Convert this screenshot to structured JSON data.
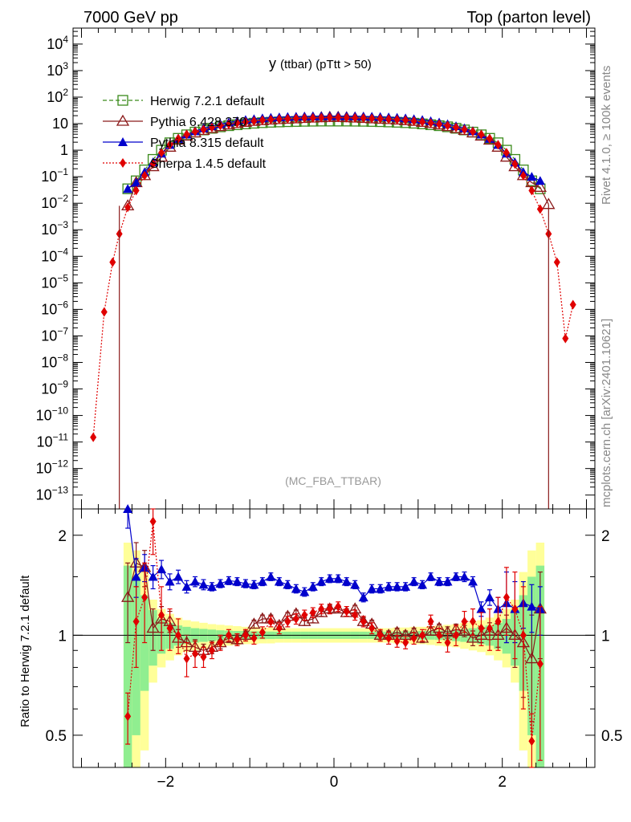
{
  "header": {
    "left": "7000 GeV pp",
    "right": "Top (parton level)"
  },
  "side_text": {
    "rivet": "Rivet 4.1.0, ≥ 100k events",
    "mcplots": "mcplots.cern.ch [arXiv:2401.10621]"
  },
  "watermark": "(MC_FBA_TTBAR)",
  "main_title": {
    "main": "y",
    "sub": "(ttbar)  (pTtt > 50)"
  },
  "ratio_ylabel": "Ratio to Herwig 7.2.1 default",
  "colors": {
    "herwig": "#3a8a1a",
    "pythia6": "#8b1a1a",
    "pythia8": "#0000cc",
    "sherpa": "#e00000",
    "band_inner": "#90ee90",
    "band_outer": "#ffff99"
  },
  "chart_data": [
    {
      "type": "line",
      "panel": "main",
      "y_scale": "log",
      "xlim": [
        -3.1,
        3.1
      ],
      "ylim": [
        3e-14,
        40000
      ],
      "y_ticklabels": [
        "10^-13",
        "10^-12",
        "10^-11",
        "10^-10",
        "10^-9",
        "10^-8",
        "10^-7",
        "10^-6",
        "10^-5",
        "10^-4",
        "10^-3",
        "10^-2",
        "10^-1",
        "1",
        "10",
        "10^2",
        "10^3",
        "10^4"
      ],
      "legend_position": "top-left",
      "x": [
        -2.86,
        -2.73,
        -2.63,
        -2.55,
        -2.45,
        -2.35,
        -2.25,
        -2.15,
        -2.05,
        -1.95,
        -1.85,
        -1.75,
        -1.65,
        -1.55,
        -1.45,
        -1.35,
        -1.25,
        -1.15,
        -1.05,
        -0.95,
        -0.85,
        -0.75,
        -0.65,
        -0.55,
        -0.45,
        -0.35,
        -0.25,
        -0.15,
        -0.05,
        0.05,
        0.15,
        0.25,
        0.35,
        0.45,
        0.55,
        0.65,
        0.75,
        0.85,
        0.95,
        1.05,
        1.15,
        1.25,
        1.35,
        1.45,
        1.55,
        1.65,
        1.75,
        1.85,
        1.95,
        2.05,
        2.15,
        2.25,
        2.35,
        2.45,
        2.55,
        2.65,
        2.75,
        2.84
      ],
      "series": [
        {
          "name": "Herwig 7.2.1 default",
          "marker": "open-square",
          "style": "dashed",
          "y": [
            null,
            null,
            null,
            null,
            0.035,
            0.07,
            0.18,
            0.45,
            1.0,
            1.9,
            2.8,
            3.8,
            4.8,
            5.8,
            6.7,
            7.6,
            8.4,
            9.1,
            9.8,
            10.4,
            10.9,
            11.3,
            11.6,
            11.9,
            12.1,
            12.3,
            12.4,
            12.5,
            12.5,
            12.5,
            12.5,
            12.4,
            12.3,
            12.1,
            11.9,
            11.6,
            11.3,
            10.9,
            10.4,
            9.8,
            9.1,
            8.4,
            7.6,
            6.7,
            5.8,
            4.8,
            3.8,
            2.8,
            1.9,
            1.0,
            0.45,
            0.18,
            0.07,
            0.035,
            null,
            null,
            null,
            null
          ]
        },
        {
          "name": "Pythia 6.428 370",
          "marker": "open-triangle",
          "style": "solid",
          "y": [
            null,
            null,
            null,
            null,
            0.008,
            0.06,
            0.11,
            0.24,
            0.55,
            1.3,
            2.4,
            3.4,
            4.5,
            5.6,
            6.6,
            7.8,
            9.0,
            10.1,
            11.3,
            12.3,
            13.1,
            13.8,
            14.3,
            14.8,
            15.3,
            15.8,
            16.3,
            16.8,
            17.3,
            17.3,
            16.8,
            16.3,
            15.8,
            15.3,
            14.8,
            14.3,
            13.8,
            13.1,
            12.3,
            11.3,
            10.1,
            9.0,
            7.8,
            6.6,
            5.6,
            4.5,
            3.4,
            2.4,
            1.3,
            0.55,
            0.24,
            0.11,
            0.06,
            0.04,
            0.009,
            null,
            null,
            null
          ]
        },
        {
          "name": "Pythia 8.315 default",
          "marker": "filled-triangle",
          "style": "solid",
          "y": [
            null,
            null,
            null,
            null,
            0.035,
            0.06,
            0.15,
            0.35,
            0.75,
            1.6,
            2.7,
            3.9,
            5.2,
            6.7,
            8.1,
            9.6,
            11.1,
            12.5,
            13.8,
            14.9,
            15.9,
            16.8,
            17.4,
            17.9,
            18.3,
            18.6,
            18.9,
            19.1,
            19.2,
            19.2,
            19.1,
            18.9,
            18.6,
            18.3,
            17.9,
            17.4,
            16.8,
            15.9,
            14.9,
            13.8,
            12.5,
            11.1,
            9.6,
            8.1,
            6.7,
            5.2,
            3.9,
            2.7,
            1.6,
            0.75,
            0.35,
            0.15,
            0.1,
            0.07,
            null,
            null,
            null,
            null
          ]
        },
        {
          "name": "Sherpa 1.4.5 default",
          "marker": "filled-diamond",
          "style": "dotted",
          "y": [
            1.5e-11,
            8e-07,
            6e-05,
            0.0007,
            0.007,
            0.03,
            0.11,
            0.3,
            0.8,
            1.6,
            2.7,
            3.9,
            5.0,
            6.0,
            7.2,
            8.4,
            9.5,
            10.6,
            11.6,
            12.6,
            13.5,
            14.2,
            14.9,
            15.4,
            15.8,
            16.2,
            16.5,
            16.8,
            17.0,
            17.0,
            16.8,
            16.5,
            16.2,
            15.8,
            15.4,
            14.9,
            14.2,
            13.5,
            12.6,
            11.6,
            10.6,
            9.5,
            8.4,
            7.2,
            6.0,
            5.0,
            3.9,
            2.7,
            1.6,
            0.8,
            0.3,
            0.11,
            0.03,
            0.006,
            0.0007,
            6e-05,
            8e-08,
            1.5e-06
          ]
        }
      ]
    },
    {
      "type": "line",
      "panel": "ratio",
      "xlabel": "",
      "ylabel": "Ratio to Herwig 7.2.1 default",
      "y_scale": "log",
      "ylim": [
        0.4,
        2.4
      ],
      "x_ticklabels": [
        "−2",
        "0",
        "2"
      ],
      "y_ticklabels": [
        "0.5",
        "1",
        "2"
      ],
      "reference_line": 1,
      "x": [
        -2.45,
        -2.35,
        -2.25,
        -2.15,
        -2.05,
        -1.95,
        -1.85,
        -1.75,
        -1.65,
        -1.55,
        -1.45,
        -1.35,
        -1.25,
        -1.15,
        -1.05,
        -0.95,
        -0.85,
        -0.75,
        -0.65,
        -0.55,
        -0.45,
        -0.35,
        -0.25,
        -0.15,
        -0.05,
        0.05,
        0.15,
        0.25,
        0.35,
        0.45,
        0.55,
        0.65,
        0.75,
        0.85,
        0.95,
        1.05,
        1.15,
        1.25,
        1.35,
        1.45,
        1.55,
        1.65,
        1.75,
        1.85,
        1.95,
        2.05,
        2.15,
        2.25,
        2.35,
        2.45
      ],
      "bands": {
        "inner_halfwidth": [
          0.62,
          0.5,
          0.32,
          0.19,
          0.12,
          0.09,
          0.07,
          0.06,
          0.05,
          0.045,
          0.04,
          0.035,
          0.032,
          0.03,
          0.03,
          0.028,
          0.027,
          0.026,
          0.025,
          0.025,
          0.025,
          0.025,
          0.025,
          0.025,
          0.025,
          0.025,
          0.025,
          0.025,
          0.025,
          0.025,
          0.025,
          0.025,
          0.026,
          0.027,
          0.028,
          0.03,
          0.03,
          0.032,
          0.035,
          0.04,
          0.045,
          0.05,
          0.06,
          0.07,
          0.09,
          0.12,
          0.19,
          0.32,
          0.5,
          0.62
        ],
        "outer_halfwidth": [
          0.9,
          0.8,
          0.55,
          0.28,
          0.2,
          0.16,
          0.13,
          0.11,
          0.1,
          0.09,
          0.08,
          0.075,
          0.07,
          0.065,
          0.06,
          0.06,
          0.055,
          0.055,
          0.05,
          0.05,
          0.05,
          0.05,
          0.05,
          0.05,
          0.05,
          0.05,
          0.05,
          0.05,
          0.05,
          0.05,
          0.05,
          0.05,
          0.055,
          0.055,
          0.06,
          0.06,
          0.065,
          0.07,
          0.075,
          0.08,
          0.09,
          0.1,
          0.11,
          0.13,
          0.16,
          0.2,
          0.28,
          0.55,
          0.8,
          0.9
        ]
      },
      "series": [
        {
          "name": "Pythia 6.428 370",
          "y": [
            1.3,
            1.65,
            1.6,
            1.05,
            1.12,
            1.1,
            0.98,
            0.95,
            0.92,
            0.9,
            0.92,
            0.95,
            0.98,
            0.97,
            1.0,
            1.08,
            1.12,
            1.12,
            1.07,
            1.14,
            1.16,
            1.1,
            1.12,
            1.17,
            1.2,
            1.2,
            1.17,
            1.2,
            1.1,
            1.08,
            1.0,
            1.0,
            1.02,
            1.0,
            1.02,
            0.98,
            1.03,
            1.05,
            1.02,
            1.04,
            1.03,
            0.98,
            1.0,
            1.03,
            1.0,
            1.05,
            1.0,
            0.95,
            0.85,
            1.2
          ],
          "err": [
            0.35,
            0.25,
            0.2,
            0.15,
            0.1,
            0.08,
            0.06,
            0.05,
            0.05,
            0.04,
            0.04,
            0.04,
            0.03,
            0.03,
            0.03,
            0.03,
            0.03,
            0.03,
            0.03,
            0.03,
            0.03,
            0.03,
            0.03,
            0.03,
            0.03,
            0.03,
            0.03,
            0.03,
            0.03,
            0.03,
            0.03,
            0.03,
            0.03,
            0.03,
            0.03,
            0.03,
            0.03,
            0.03,
            0.04,
            0.04,
            0.04,
            0.05,
            0.05,
            0.06,
            0.08,
            0.1,
            0.2,
            0.3,
            0.3,
            0.35
          ]
        },
        {
          "name": "Pythia 8.315 default",
          "y": [
            2.4,
            1.5,
            1.6,
            1.5,
            1.58,
            1.45,
            1.5,
            1.4,
            1.45,
            1.42,
            1.4,
            1.43,
            1.46,
            1.45,
            1.43,
            1.42,
            1.45,
            1.5,
            1.45,
            1.42,
            1.38,
            1.35,
            1.4,
            1.45,
            1.48,
            1.48,
            1.45,
            1.42,
            1.3,
            1.38,
            1.38,
            1.4,
            1.4,
            1.4,
            1.45,
            1.42,
            1.5,
            1.45,
            1.45,
            1.5,
            1.5,
            1.45,
            1.2,
            1.3,
            1.2,
            1.25,
            1.2,
            1.25,
            1.22,
            1.2
          ],
          "err": [
            0.3,
            0.2,
            0.15,
            0.12,
            0.1,
            0.08,
            0.07,
            0.06,
            0.05,
            0.05,
            0.04,
            0.04,
            0.04,
            0.04,
            0.04,
            0.04,
            0.04,
            0.04,
            0.04,
            0.04,
            0.04,
            0.04,
            0.04,
            0.04,
            0.04,
            0.04,
            0.04,
            0.04,
            0.04,
            0.04,
            0.04,
            0.04,
            0.04,
            0.04,
            0.04,
            0.04,
            0.04,
            0.04,
            0.04,
            0.04,
            0.05,
            0.05,
            0.06,
            0.07,
            0.1,
            0.3,
            0.25,
            0.2,
            0.2,
            0.2
          ]
        },
        {
          "name": "Sherpa 1.4.5 default",
          "y": [
            0.57,
            1.1,
            1.3,
            2.2,
            1.15,
            1.05,
            1.0,
            0.85,
            0.88,
            0.86,
            0.9,
            0.95,
            1.0,
            0.97,
            1.0,
            0.98,
            1.02,
            1.1,
            1.05,
            1.1,
            1.12,
            1.15,
            1.17,
            1.2,
            1.2,
            1.22,
            1.18,
            1.15,
            1.1,
            1.05,
            1.0,
            0.98,
            0.96,
            0.95,
            0.98,
            1.0,
            1.1,
            1.0,
            0.95,
            1.0,
            1.1,
            1.1,
            1.05,
            1.05,
            1.1,
            1.3,
            1.2,
            1.0,
            0.48,
            0.82
          ],
          "err": [
            0.1,
            0.3,
            0.35,
            0.45,
            0.25,
            0.15,
            0.12,
            0.1,
            0.08,
            0.06,
            0.05,
            0.05,
            0.04,
            0.04,
            0.04,
            0.04,
            0.04,
            0.04,
            0.04,
            0.04,
            0.04,
            0.04,
            0.04,
            0.04,
            0.04,
            0.04,
            0.04,
            0.04,
            0.04,
            0.04,
            0.04,
            0.04,
            0.04,
            0.04,
            0.04,
            0.04,
            0.05,
            0.05,
            0.06,
            0.07,
            0.08,
            0.1,
            0.12,
            0.15,
            0.2,
            0.3,
            0.35,
            0.4,
            0.1,
            0.4
          ]
        }
      ]
    }
  ]
}
